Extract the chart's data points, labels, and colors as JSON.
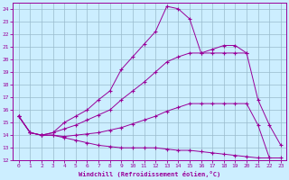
{
  "xlabel": "Windchill (Refroidissement éolien,°C)",
  "background_color": "#cceeff",
  "grid_color": "#99bbcc",
  "line_color": "#990099",
  "xlim": [
    -0.5,
    23.5
  ],
  "ylim": [
    12,
    24.5
  ],
  "yticks": [
    12,
    13,
    14,
    15,
    16,
    17,
    18,
    19,
    20,
    21,
    22,
    23,
    24
  ],
  "xticks": [
    0,
    1,
    2,
    3,
    4,
    5,
    6,
    7,
    8,
    9,
    10,
    11,
    12,
    13,
    14,
    15,
    16,
    17,
    18,
    19,
    20,
    21,
    22,
    23
  ],
  "lines": [
    {
      "x": [
        0,
        1,
        2,
        3,
        4,
        5,
        6,
        7,
        8,
        9,
        10,
        11,
        12,
        13,
        14,
        15,
        16,
        17,
        18,
        19,
        20,
        21,
        22,
        23
      ],
      "y": [
        15.5,
        14.2,
        14.0,
        14.2,
        15.0,
        15.5,
        16.0,
        16.8,
        17.5,
        19.2,
        20.2,
        21.2,
        22.2,
        24.2,
        24.0,
        23.2,
        20.5,
        20.8,
        21.1,
        21.1,
        20.5,
        null,
        null,
        null
      ]
    },
    {
      "x": [
        0,
        1,
        2,
        3,
        4,
        5,
        6,
        7,
        8,
        9,
        10,
        11,
        12,
        13,
        14,
        15,
        16,
        17,
        18,
        19,
        20,
        21,
        22,
        23
      ],
      "y": [
        15.5,
        14.2,
        14.0,
        14.2,
        14.5,
        14.8,
        15.2,
        15.6,
        16.0,
        16.8,
        17.5,
        18.2,
        19.0,
        19.8,
        20.2,
        20.5,
        20.5,
        20.5,
        20.5,
        20.5,
        20.5,
        16.8,
        14.8,
        13.2
      ]
    },
    {
      "x": [
        0,
        1,
        2,
        3,
        4,
        5,
        6,
        7,
        8,
        9,
        10,
        11,
        12,
        13,
        14,
        15,
        16,
        17,
        18,
        19,
        20,
        21,
        22,
        23
      ],
      "y": [
        15.5,
        14.2,
        14.0,
        14.0,
        13.9,
        14.0,
        14.1,
        14.2,
        14.4,
        14.6,
        14.9,
        15.2,
        15.5,
        15.9,
        16.2,
        16.5,
        16.5,
        16.5,
        16.5,
        16.5,
        16.5,
        14.8,
        12.2,
        null
      ]
    },
    {
      "x": [
        0,
        1,
        2,
        3,
        4,
        5,
        6,
        7,
        8,
        9,
        10,
        11,
        12,
        13,
        14,
        15,
        16,
        17,
        18,
        19,
        20,
        21,
        22,
        23
      ],
      "y": [
        15.5,
        14.2,
        14.0,
        14.0,
        13.8,
        13.6,
        13.4,
        13.2,
        13.1,
        13.0,
        13.0,
        13.0,
        13.0,
        12.9,
        12.8,
        12.8,
        12.7,
        12.6,
        12.5,
        12.4,
        12.3,
        12.2,
        12.2,
        12.2
      ]
    }
  ]
}
